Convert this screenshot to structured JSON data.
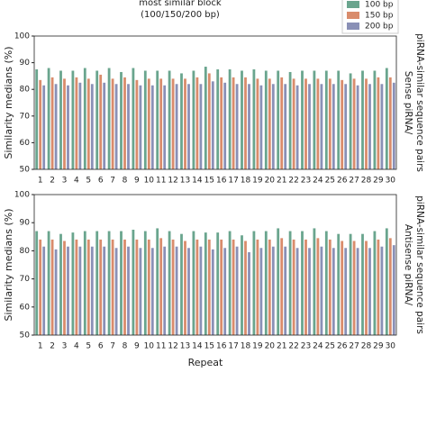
{
  "chart_data": {
    "type": "bar",
    "title": "most similar block",
    "subtitle": "(100/150/200 bp)",
    "xlabel": "Repeat",
    "ylabel": "Similarity medians (%)",
    "categories": [
      "1",
      "2",
      "3",
      "4",
      "5",
      "6",
      "7",
      "8",
      "9",
      "10",
      "11",
      "12",
      "13",
      "14",
      "15",
      "16",
      "17",
      "18",
      "19",
      "20",
      "21",
      "22",
      "23",
      "24",
      "25",
      "26",
      "27",
      "28",
      "29",
      "30"
    ],
    "ylim": [
      50,
      100
    ],
    "yticks": [
      50,
      60,
      70,
      80,
      90,
      100
    ],
    "legend": "upper right",
    "series": [
      {
        "name": "100 bp",
        "color": "#6aa58e"
      },
      {
        "name": "150 bp",
        "color": "#d98c6c"
      },
      {
        "name": "200 bp",
        "color": "#8a90b6"
      }
    ],
    "panels": [
      {
        "label": [
          "Sense piRNA/",
          "piRNA-similar sequence pairs"
        ],
        "label_color": "#8a90b6",
        "series": [
          {
            "values": [
              87.5,
              88,
              87,
              87,
              88,
              87,
              88,
              86.5,
              88,
              87,
              87,
              87,
              86,
              87,
              88.5,
              87.5,
              87.5,
              87,
              87.5,
              87,
              87,
              86.5,
              87,
              87,
              87,
              87,
              86,
              87,
              87,
              88
            ]
          },
          {
            "values": [
              83.5,
              84.5,
              84,
              84.5,
              84,
              85.5,
              84,
              84.5,
              83.5,
              84,
              84,
              84,
              84,
              84.5,
              86,
              84.5,
              84.5,
              84.5,
              84,
              84,
              84.5,
              84,
              84,
              84,
              84,
              83.5,
              84,
              84,
              84.5,
              84.5
            ]
          },
          {
            "values": [
              81.5,
              82,
              81.5,
              82.5,
              82,
              82.5,
              82,
              82,
              81.5,
              81.5,
              81.5,
              82,
              82,
              82,
              83,
              82.5,
              82,
              82,
              81.5,
              82,
              82,
              81.5,
              82,
              82,
              82,
              82,
              81.5,
              82,
              82,
              82.5
            ]
          }
        ]
      },
      {
        "label": [
          "Antisense piRNA/",
          "piRNA-similar sequence pairs"
        ],
        "label_color": "#d98c6c",
        "series": [
          {
            "values": [
              87,
              87,
              86,
              86.5,
              87,
              87,
              87,
              87,
              87.5,
              87,
              88,
              87,
              86,
              87,
              86.5,
              86.5,
              87,
              85.5,
              87,
              87,
              88,
              87,
              87,
              88,
              87,
              86,
              86,
              86,
              87,
              88
            ]
          },
          {
            "values": [
              84,
              84,
              83.5,
              84,
              84,
              84,
              84,
              84,
              84,
              84,
              84.5,
              84,
              83.5,
              84,
              84,
              84,
              84,
              83.5,
              84,
              84,
              84.5,
              84,
              84,
              84.5,
              84,
              83.5,
              83.5,
              83.5,
              84,
              84.5
            ]
          },
          {
            "values": [
              81.5,
              80.5,
              81.5,
              81.5,
              81.5,
              81.5,
              81,
              81.5,
              81,
              81,
              81.5,
              81.5,
              81,
              81.5,
              80.5,
              81,
              81.5,
              79.5,
              81,
              81.5,
              81.5,
              81,
              81,
              81.5,
              81,
              81,
              81,
              81,
              81.5,
              82
            ]
          }
        ]
      }
    ]
  }
}
